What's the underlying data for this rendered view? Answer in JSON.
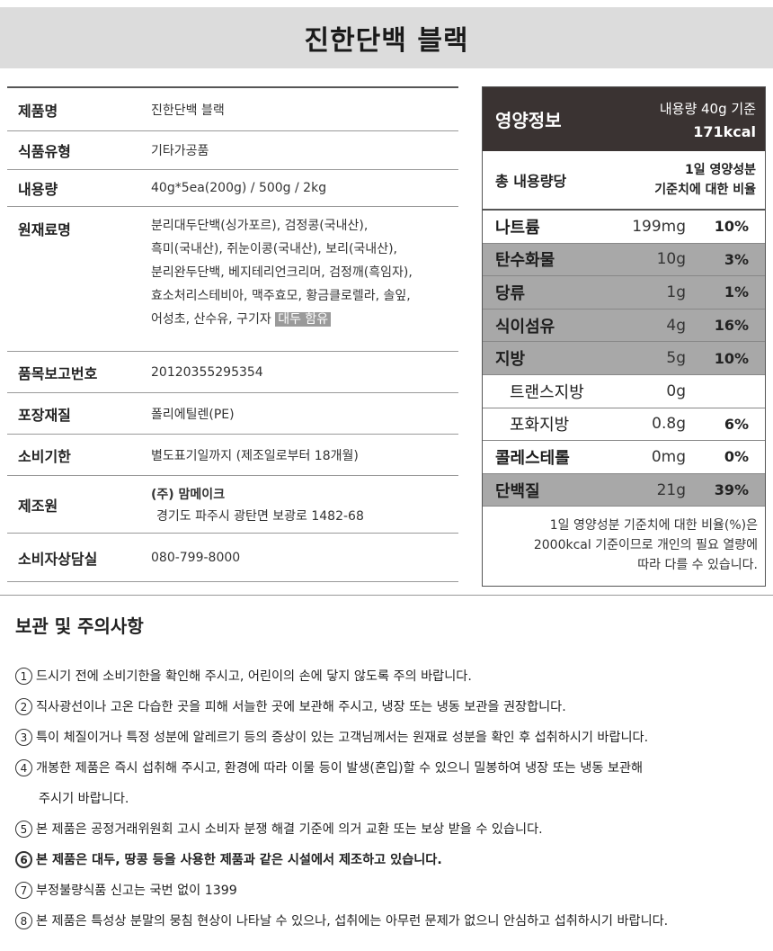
{
  "title": "진한단백 블랙",
  "info": {
    "product_name_key": "제품명",
    "product_name_val": "진한단백 블랙",
    "type_key": "식품유형",
    "type_val": "기타가공품",
    "volume_key": "내용량",
    "volume_val": "40g*5ea(200g) / 500g / 2kg",
    "ingredients_key": "원재료명",
    "ingredients_lines": [
      "분리대두단백(싱가포르), 검정콩(국내산),",
      "흑미(국내산), 쥐눈이콩(국내산), 보리(국내산),",
      "분리완두단백, 베지테리언크리머, 검정깨(흑임자),",
      "효소처리스테비아, 맥주효모, 황금클로렐라, 솔잎,",
      "어성초, 산수유, 구기자"
    ],
    "allergen": "대두 함유",
    "report_key": "품목보고번호",
    "report_val": "20120355295354",
    "package_key": "포장재질",
    "package_val": "폴리에틸렌(PE)",
    "expiry_key": "소비기한",
    "expiry_val": "별도표기일까지 (제조일로부터 18개월)",
    "maker_key": "제조원",
    "maker_name": "(주) 맘메이크",
    "maker_addr": "경기도 파주시 광탄면 보광로 1482-68",
    "contact_key": "소비자상담실",
    "contact_val": "080-799-8000"
  },
  "nutrition": {
    "label": "영양정보",
    "serving": "내용량 40g 기준",
    "kcal": "171kcal",
    "total_label": "총 내용량당",
    "daily_label_1": "1일 영양성분",
    "daily_label_2": "기준치에 대한 비율",
    "rows": [
      {
        "name": "나트륨",
        "amount": "199mg",
        "pct": "10%"
      },
      {
        "name": "탄수화물",
        "amount": "10g",
        "pct": "3%"
      },
      {
        "name": "당류",
        "amount": "1g",
        "pct": "1%"
      },
      {
        "name": "식이섬유",
        "amount": "4g",
        "pct": "16%"
      },
      {
        "name": "지방",
        "amount": "5g",
        "pct": "10%"
      },
      {
        "name": "트랜스지방",
        "amount": "0g",
        "pct": ""
      },
      {
        "name": "포화지방",
        "amount": "0.8g",
        "pct": "6%"
      },
      {
        "name": "콜레스테롤",
        "amount": "0mg",
        "pct": "0%"
      },
      {
        "name": "단백질",
        "amount": "21g",
        "pct": "39%"
      }
    ],
    "note_1": "1일 영양성분 기준치에 대한 비율(%)은",
    "note_2": "2000kcal 기준이므로 개인의 필요 열량에",
    "note_3": "따라 다를 수 있습니다."
  },
  "caution": {
    "title": "보관 및 주의사항",
    "items": [
      {
        "num": "1",
        "text": "드시기 전에 소비기한을 확인해 주시고, 어린이의 손에 닿지 않도록 주의 바랍니다."
      },
      {
        "num": "2",
        "text": "직사광선이나 고온 다습한 곳을 피해 서늘한 곳에 보관해 주시고, 냉장 또는 냉동 보관을 권장합니다."
      },
      {
        "num": "3",
        "text": "특이 체질이거나 특정 성분에 알레르기 등의 증상이 있는 고객님께서는 원재료 성분을 확인 후 섭취하시기 바랍니다."
      },
      {
        "num": "4",
        "text": "개봉한 제품은 즉시 섭취해 주시고, 환경에 따라 이물 등이 발생(혼입)할 수 있으니 밀봉하여 냉장 또는 냉동 보관해",
        "cont": "주시기 바랍니다."
      },
      {
        "num": "5",
        "text": "본 제품은 공정거래위원회 고시 소비자 분쟁 해결 기준에 의거 교환 또는 보상 받을 수 있습니다."
      },
      {
        "num": "6",
        "text": "본 제품은 대두, 땅콩 등을 사용한 제품과 같은 시설에서 제조하고 있습니다."
      },
      {
        "num": "7",
        "text": "부정불량식품 신고는 국번 없이 1399"
      },
      {
        "num": "8",
        "text": "본 제품은 특성상 분말의 뭉침 현상이 나타날 수 있으나, 섭취에는 아무런 문제가 없으니 안심하고 섭취하시기 바랍니다."
      }
    ]
  }
}
